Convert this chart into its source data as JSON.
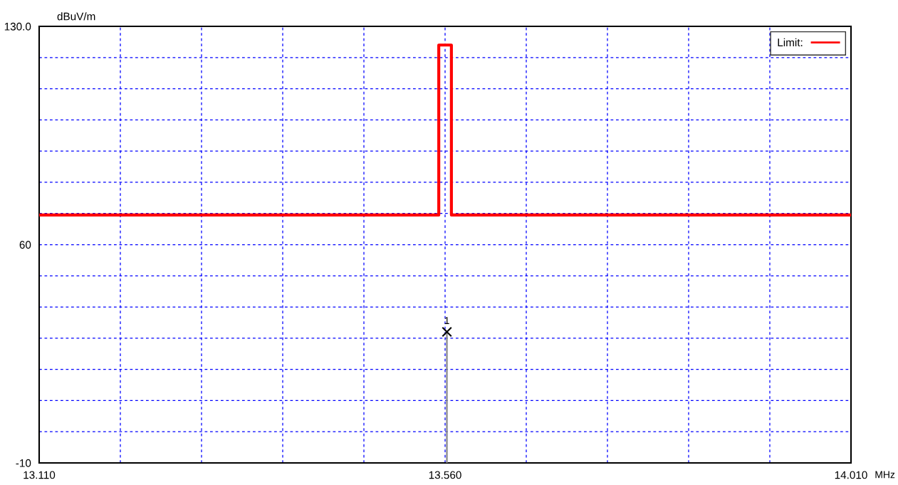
{
  "chart_data": {
    "type": "line",
    "xlabel": "MHz",
    "ylabel": "dBuV/m",
    "series": [
      {
        "name": "Limit:",
        "color": "#ff0000",
        "x": [
          13.11,
          13.553,
          13.553,
          13.567,
          13.567,
          14.01
        ],
        "values": [
          69.5,
          69.5,
          124,
          124,
          69.5,
          69.5
        ]
      },
      {
        "type": "lollipop",
        "color": "#000000",
        "x": [
          13.562
        ],
        "values": [
          32
        ],
        "marker": "cross"
      }
    ],
    "annotations": [
      {
        "text": "1",
        "x": 13.562,
        "y": 32
      }
    ],
    "xlim": [
      13.11,
      14.01
    ],
    "xticks": [
      {
        "value": 13.11,
        "label": "13.110"
      },
      {
        "value": 13.2,
        "label": null
      },
      {
        "value": 13.29,
        "label": null
      },
      {
        "value": 13.38,
        "label": null
      },
      {
        "value": 13.47,
        "label": null
      },
      {
        "value": 13.56,
        "label": "13.560"
      },
      {
        "value": 13.65,
        "label": null
      },
      {
        "value": 13.74,
        "label": null
      },
      {
        "value": 13.83,
        "label": null
      },
      {
        "value": 13.92,
        "label": null
      },
      {
        "value": 14.01,
        "label": "14.010"
      }
    ],
    "ylim": [
      -10,
      130
    ],
    "yticks": [
      {
        "value": -10,
        "label": "-10"
      },
      {
        "value": 0,
        "label": null
      },
      {
        "value": 10,
        "label": null
      },
      {
        "value": 20,
        "label": null
      },
      {
        "value": 30,
        "label": null
      },
      {
        "value": 40,
        "label": null
      },
      {
        "value": 50,
        "label": null
      },
      {
        "value": 60,
        "label": "60"
      },
      {
        "value": 70,
        "label": null
      },
      {
        "value": 80,
        "label": null
      },
      {
        "value": 90,
        "label": null
      },
      {
        "value": 100,
        "label": null
      },
      {
        "value": 110,
        "label": null
      },
      {
        "value": 120,
        "label": null
      },
      {
        "value": 130,
        "label": "130.0"
      }
    ],
    "grid": true,
    "legend": "top right"
  }
}
